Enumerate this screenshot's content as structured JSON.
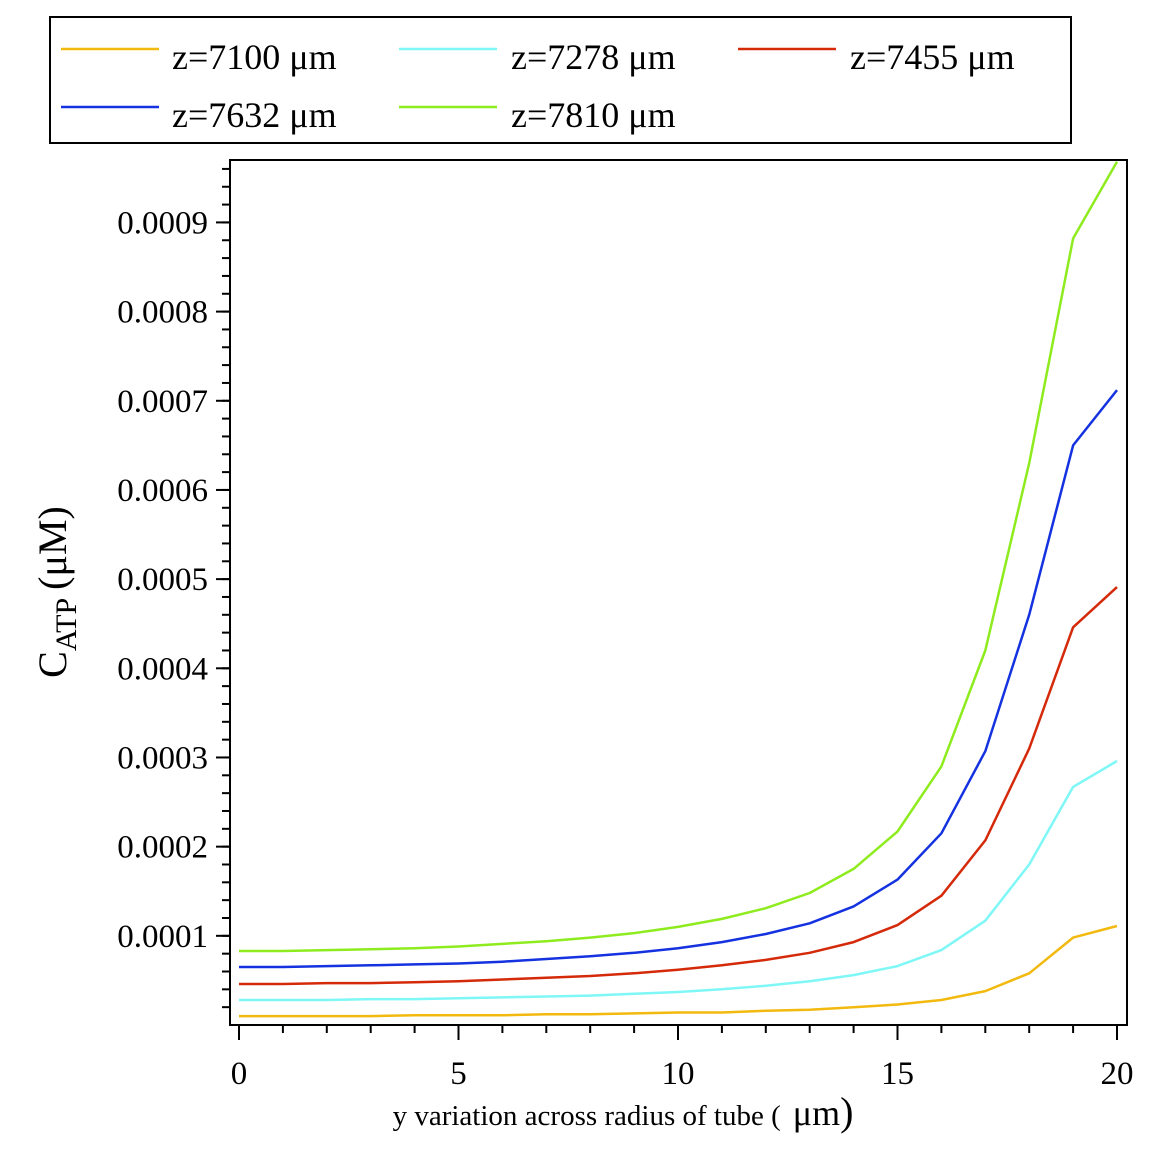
{
  "chart_data": {
    "type": "line",
    "x": [
      0,
      1,
      2,
      3,
      4,
      5,
      6,
      7,
      8,
      9,
      10,
      11,
      12,
      13,
      14,
      15,
      16,
      17,
      18,
      19,
      20
    ],
    "xlim": [
      0,
      20
    ],
    "ylim": [
      0,
      0.00097
    ],
    "x_ticks": [
      0,
      5,
      10,
      15,
      20
    ],
    "x_tick_labels": [
      "0",
      "5",
      "10",
      "15",
      "20"
    ],
    "y_ticks": [
      0.0001,
      0.0002,
      0.0003,
      0.0004,
      0.0005,
      0.0006,
      0.0007,
      0.0008,
      0.0009
    ],
    "y_tick_labels": [
      "0.0001",
      "0.0002",
      "0.0003",
      "0.0004",
      "0.0005",
      "0.0006",
      "0.0007",
      "0.0008",
      "0.0009"
    ],
    "xlabel": "y variation across radius of tube (",
    "xlabel_unit": "μm",
    "xlabel_close": ")",
    "ylabel_main": "C",
    "ylabel_sub": "ATP",
    "ylabel_unit": "(μM)",
    "grid": false,
    "legend_position": "top",
    "series": [
      {
        "name": "z=7100 μm",
        "color": "#f2b90f",
        "values": [
          1e-05,
          1e-05,
          1e-05,
          1e-05,
          1.1e-05,
          1.1e-05,
          1.1e-05,
          1.2e-05,
          1.2e-05,
          1.3e-05,
          1.4e-05,
          1.4e-05,
          1.6e-05,
          1.7e-05,
          2e-05,
          2.3e-05,
          2.8e-05,
          3.8e-05,
          5.8e-05,
          9.8e-05,
          0.000111
        ]
      },
      {
        "name": "z=7278 μm",
        "color": "#7ff7f7",
        "values": [
          2.8e-05,
          2.8e-05,
          2.8e-05,
          2.9e-05,
          2.9e-05,
          3e-05,
          3.1e-05,
          3.2e-05,
          3.3e-05,
          3.5e-05,
          3.7e-05,
          4e-05,
          4.4e-05,
          4.9e-05,
          5.6e-05,
          6.6e-05,
          8.4e-05,
          0.000117,
          0.00018,
          0.000267,
          0.000296
        ]
      },
      {
        "name": "z=7455 μm",
        "color": "#d42a0a",
        "values": [
          4.6e-05,
          4.6e-05,
          4.7e-05,
          4.7e-05,
          4.8e-05,
          4.9e-05,
          5.1e-05,
          5.3e-05,
          5.5e-05,
          5.8e-05,
          6.2e-05,
          6.7e-05,
          7.3e-05,
          8.1e-05,
          9.3e-05,
          0.000112,
          0.000145,
          0.000207,
          0.00031,
          0.000446,
          0.000491
        ]
      },
      {
        "name": "z=7632 μm",
        "color": "#1432e0",
        "values": [
          6.5e-05,
          6.5e-05,
          6.6e-05,
          6.7e-05,
          6.8e-05,
          6.9e-05,
          7.1e-05,
          7.4e-05,
          7.7e-05,
          8.1e-05,
          8.6e-05,
          9.3e-05,
          0.000102,
          0.000114,
          0.000133,
          0.000163,
          0.000215,
          0.000307,
          0.00046,
          0.00065,
          0.000712
        ]
      },
      {
        "name": "z=7810 μm",
        "color": "#8eec1e",
        "values": [
          8.3e-05,
          8.3e-05,
          8.4e-05,
          8.5e-05,
          8.6e-05,
          8.8e-05,
          9.1e-05,
          9.4e-05,
          9.8e-05,
          0.000103,
          0.00011,
          0.000119,
          0.000131,
          0.000148,
          0.000175,
          0.000217,
          0.00029,
          0.00042,
          0.00063,
          0.000882,
          0.000968
        ]
      }
    ]
  }
}
